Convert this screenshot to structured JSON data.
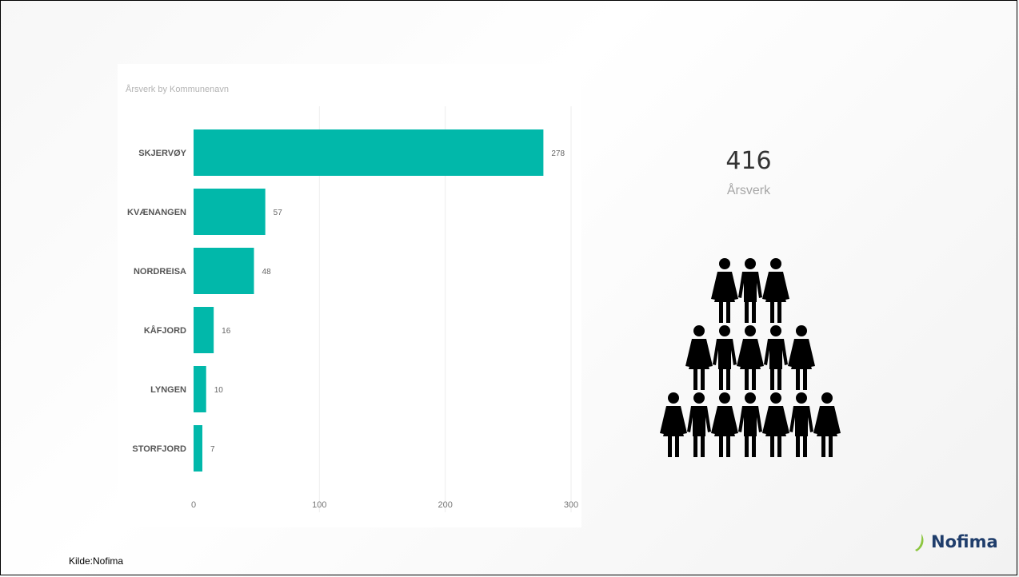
{
  "chart_data": {
    "type": "bar",
    "orientation": "horizontal",
    "title": "Årsverk by Kommunenavn",
    "categories": [
      "SKJERVØY",
      "KVÆNANGEN",
      "NORDREISA",
      "KÅFJORD",
      "LYNGEN",
      "STORFJORD"
    ],
    "values": [
      278,
      57,
      48,
      16,
      10,
      7
    ],
    "x_ticks": [
      0,
      100,
      200,
      300
    ],
    "xlim": [
      0,
      300
    ],
    "grid": true,
    "bar_color": "#01b8aa"
  },
  "kpi": {
    "value": "416",
    "label": "Årsverk"
  },
  "people_icon": "people-pyramid-icon",
  "logo": {
    "text": "Nofima",
    "mark_color": "#8cc63f",
    "text_color": "#1f3d6b"
  },
  "source": "Kilde:Nofima"
}
